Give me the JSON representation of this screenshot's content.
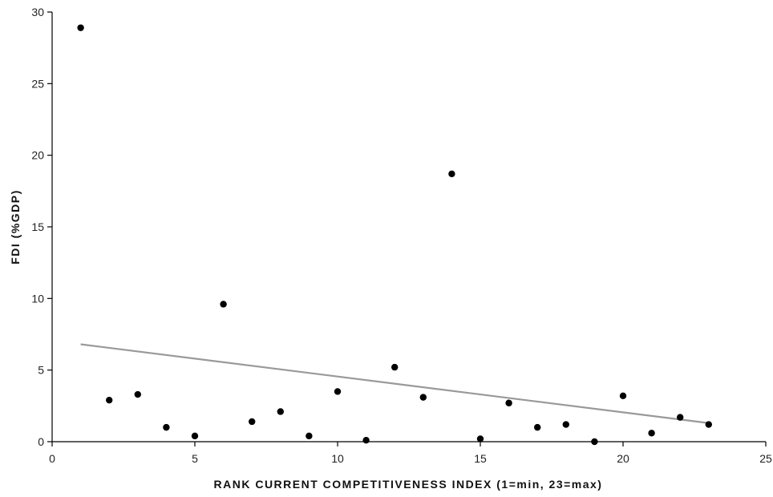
{
  "chart_data": {
    "type": "scatter",
    "title": "",
    "xlabel": "RANK CURRENT COMPETITIVENESS INDEX (1=min, 23=max)",
    "ylabel": "FDI (%GDP)",
    "xlim": [
      0,
      25
    ],
    "ylim": [
      0,
      30
    ],
    "xticks": [
      0,
      5,
      10,
      15,
      20,
      25
    ],
    "yticks": [
      0,
      5,
      10,
      15,
      20,
      25,
      30
    ],
    "grid": false,
    "points": [
      {
        "x": 1,
        "y": 28.9
      },
      {
        "x": 2,
        "y": 2.9
      },
      {
        "x": 3,
        "y": 3.3
      },
      {
        "x": 4,
        "y": 1.0
      },
      {
        "x": 5,
        "y": 0.4
      },
      {
        "x": 6,
        "y": 9.6
      },
      {
        "x": 7,
        "y": 1.4
      },
      {
        "x": 8,
        "y": 2.1
      },
      {
        "x": 9,
        "y": 0.4
      },
      {
        "x": 10,
        "y": 3.5
      },
      {
        "x": 11,
        "y": 0.1
      },
      {
        "x": 12,
        "y": 5.2
      },
      {
        "x": 13,
        "y": 3.1
      },
      {
        "x": 14,
        "y": 18.7
      },
      {
        "x": 15,
        "y": 0.2
      },
      {
        "x": 16,
        "y": 2.7
      },
      {
        "x": 17,
        "y": 1.0
      },
      {
        "x": 18,
        "y": 1.2
      },
      {
        "x": 19,
        "y": 0.0
      },
      {
        "x": 20,
        "y": 3.2
      },
      {
        "x": 21,
        "y": 0.6
      },
      {
        "x": 22,
        "y": 1.7
      },
      {
        "x": 23,
        "y": 1.2
      }
    ],
    "trendline": {
      "x": [
        1,
        23
      ],
      "y": [
        6.8,
        1.3
      ]
    },
    "colors": {
      "points": "#000000",
      "trendline": "#999999",
      "axis": "#000000"
    }
  }
}
